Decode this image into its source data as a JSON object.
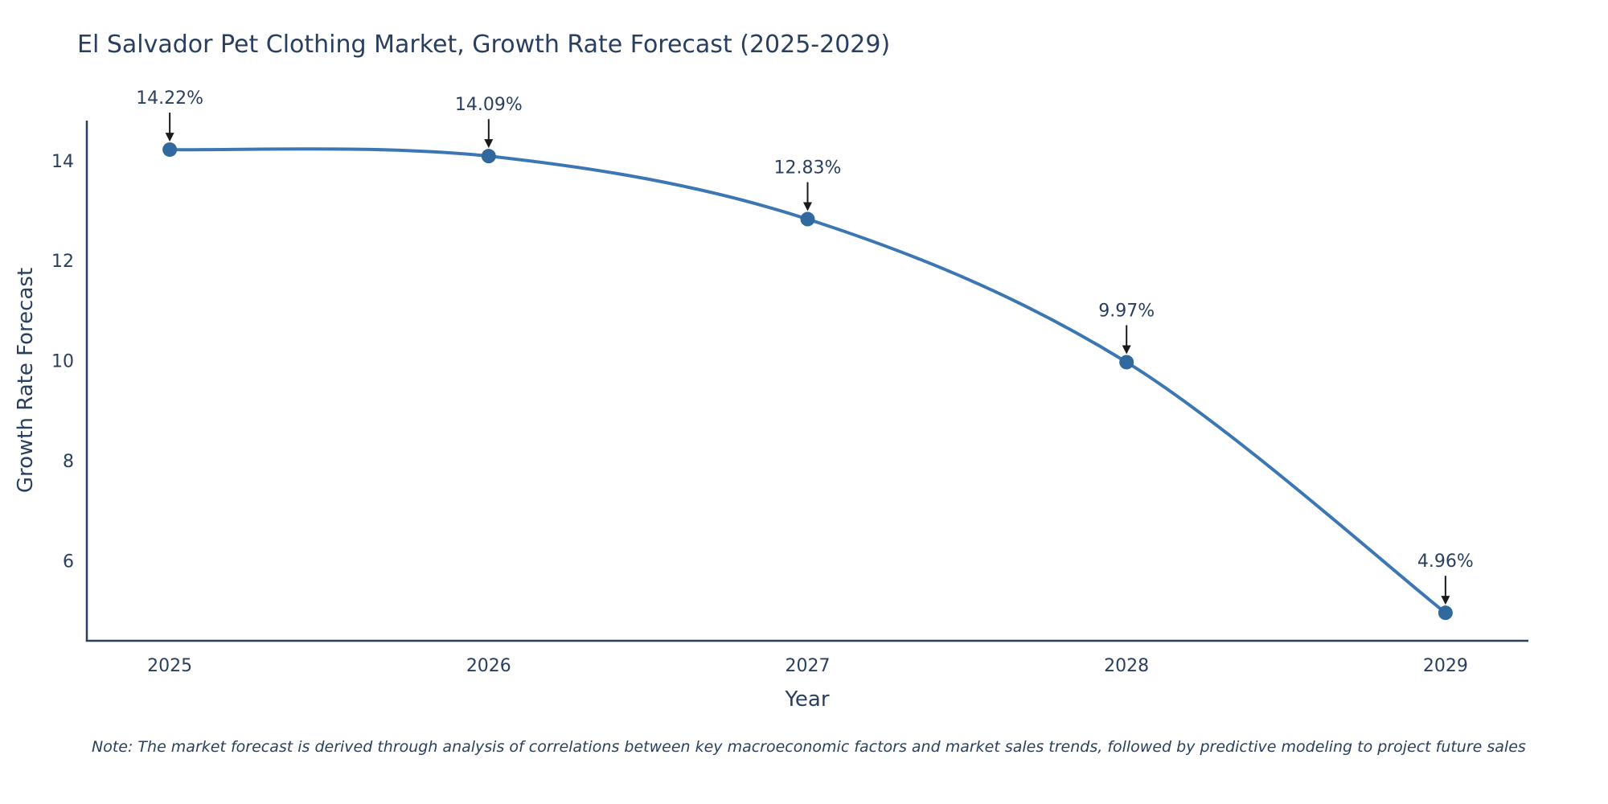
{
  "chart_data": {
    "type": "line",
    "title": "El Salvador Pet Clothing Market, Growth Rate Forecast (2025-2029)",
    "xlabel": "Year",
    "ylabel": "Growth Rate Forecast",
    "x": [
      2025,
      2026,
      2027,
      2028,
      2029
    ],
    "series": [
      {
        "name": "Growth Rate Forecast",
        "values": [
          14.22,
          14.09,
          12.83,
          9.97,
          4.96
        ]
      }
    ],
    "point_labels": [
      "14.22%",
      "14.09%",
      "12.83%",
      "9.97%",
      "4.96%"
    ],
    "yticks": [
      6,
      8,
      10,
      12,
      14
    ],
    "ylim": [
      4.4,
      14.8
    ],
    "x_pad": 0.26,
    "grid": false,
    "legend": "none",
    "line_shape": "spline",
    "colors": {
      "line": "#3c77b4",
      "marker": "#31689d",
      "text": "#2a3f5f",
      "axis": "#2a3f5f",
      "arrow": "#1a1a1a"
    },
    "note": "Note: The market forecast is derived through analysis of correlations between key macroeconomic factors and market sales trends, followed by predictive modeling to project future sales"
  }
}
